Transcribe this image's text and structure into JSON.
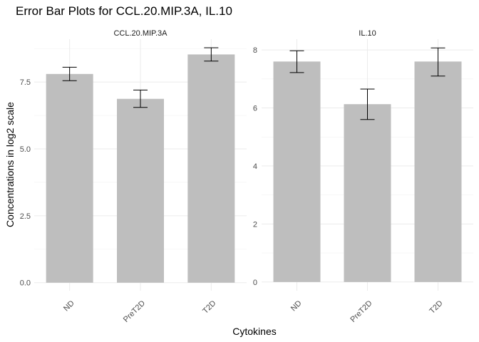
{
  "chart_data": {
    "type": "bar",
    "title": "Error Bar Plots for CCL.20.MIP.3A, IL.10",
    "xlabel": "Cytokines",
    "ylabel": "Concentrations in log2 scale",
    "bar_color": "#bebebe",
    "error_bar_color": "#000000",
    "grid": true,
    "facets": [
      {
        "name": "CCL.20.MIP.3A",
        "categories": [
          "ND",
          "PreT2D",
          "T2D"
        ],
        "values": [
          7.8,
          6.87,
          8.53
        ],
        "error_low": [
          7.55,
          6.55,
          8.28
        ],
        "error_high": [
          8.05,
          7.2,
          8.78
        ],
        "ylim": [
          -0.3,
          9.1
        ],
        "yticks": [
          0,
          2.5,
          5,
          7.5
        ],
        "ytick_labels": [
          "0.0",
          "2.5",
          "5.0",
          "7.5"
        ]
      },
      {
        "name": "IL.10",
        "categories": [
          "ND",
          "PreT2D",
          "T2D"
        ],
        "values": [
          7.6,
          6.13,
          7.6
        ],
        "error_low": [
          7.22,
          5.6,
          7.1
        ],
        "error_high": [
          7.97,
          6.65,
          8.07
        ],
        "ylim": [
          -0.3,
          8.37
        ],
        "yticks": [
          0,
          2,
          4,
          6,
          8
        ],
        "ytick_labels": [
          "0",
          "2",
          "4",
          "6",
          "8"
        ]
      }
    ]
  }
}
